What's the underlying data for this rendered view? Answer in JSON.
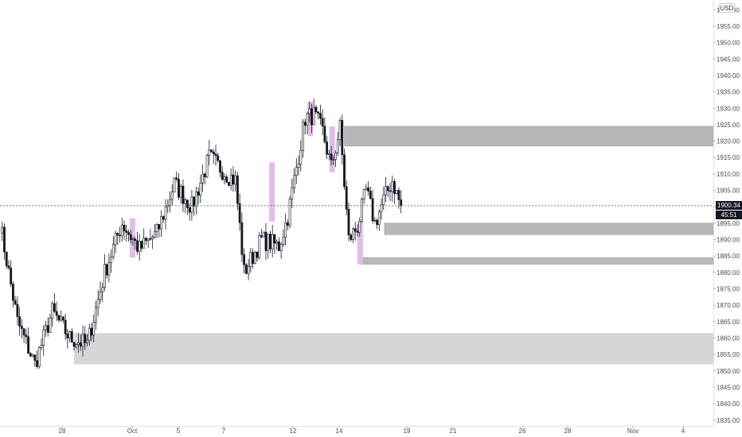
{
  "currency_label": "USD",
  "last_price_label": "1900.34",
  "countdown_label": "45:51",
  "colors": {
    "zone_dark": "#b8b8b8",
    "zone_light": "#d6d6d6",
    "highlight": "#e1bee7",
    "candle": "#131722",
    "price_line": "#7a7a7a"
  },
  "chart_data": {
    "type": "candlestick",
    "ylim": [
      1835,
      1965
    ],
    "y_ticks": [
      1835,
      1840,
      1845,
      1850,
      1855,
      1860,
      1865,
      1870,
      1875,
      1880,
      1885,
      1890,
      1895,
      1900,
      1905,
      1910,
      1915,
      1920,
      1925,
      1930,
      1935,
      1940,
      1945,
      1950,
      1955,
      1960
    ],
    "x_ticks": [
      "28",
      "Oct",
      "5",
      "7",
      "12",
      "14",
      "19",
      "21",
      "26",
      "28",
      "Nov",
      "4"
    ],
    "last_price": 1900.34,
    "anchors": [
      {
        "day": 0,
        "price": 1895
      },
      {
        "day": 2,
        "price": 1865
      },
      {
        "day": 4,
        "price": 1852
      },
      {
        "day": 6,
        "price": 1868
      },
      {
        "day": 8,
        "price": 1860
      },
      {
        "day": 10,
        "price": 1858
      },
      {
        "day": 12,
        "price": 1880
      },
      {
        "day": 14,
        "price": 1895
      },
      {
        "day": 16,
        "price": 1887
      },
      {
        "day": 18,
        "price": 1892
      },
      {
        "day": 20,
        "price": 1907
      },
      {
        "day": 22,
        "price": 1900
      },
      {
        "day": 24,
        "price": 1915
      },
      {
        "day": 26,
        "price": 1910
      },
      {
        "day": 27,
        "price": 1908
      },
      {
        "day": 28,
        "price": 1880
      },
      {
        "day": 30,
        "price": 1890
      },
      {
        "day": 32,
        "price": 1888
      },
      {
        "day": 33,
        "price": 1897
      },
      {
        "day": 34,
        "price": 1912
      },
      {
        "day": 35,
        "price": 1927
      },
      {
        "day": 36,
        "price": 1928
      },
      {
        "day": 37,
        "price": 1923
      },
      {
        "day": 38,
        "price": 1912
      },
      {
        "day": 39,
        "price": 1924
      },
      {
        "day": 40,
        "price": 1890
      },
      {
        "day": 41,
        "price": 1894
      },
      {
        "day": 42,
        "price": 1905
      },
      {
        "day": 43,
        "price": 1895
      },
      {
        "day": 44,
        "price": 1902
      },
      {
        "day": 45,
        "price": 1908
      },
      {
        "day": 46,
        "price": 1900
      }
    ],
    "zones": [
      {
        "from_day": 39.5,
        "y_low": 1918.5,
        "y_high": 1924.5,
        "shade": "dark"
      },
      {
        "from_day": 44.1,
        "y_low": 1891.5,
        "y_high": 1895.0,
        "shade": "dark"
      },
      {
        "from_day": 41.3,
        "y_low": 1882.5,
        "y_high": 1884.5,
        "shade": "dark"
      },
      {
        "from_day": 8.5,
        "y_low": 1852.0,
        "y_high": 1861.5,
        "shade": "light"
      }
    ],
    "highlights": [
      {
        "day": 15.2,
        "y_low": 1884.5,
        "y_high": 1896.5
      },
      {
        "day": 31.2,
        "y_low": 1895.5,
        "y_high": 1913.5
      },
      {
        "day": 35.6,
        "y_low": 1921.5,
        "y_high": 1932.0
      },
      {
        "day": 38.1,
        "y_low": 1910.5,
        "y_high": 1924.5
      },
      {
        "day": 41.3,
        "y_low": 1882.5,
        "y_high": 1895.5
      }
    ]
  }
}
